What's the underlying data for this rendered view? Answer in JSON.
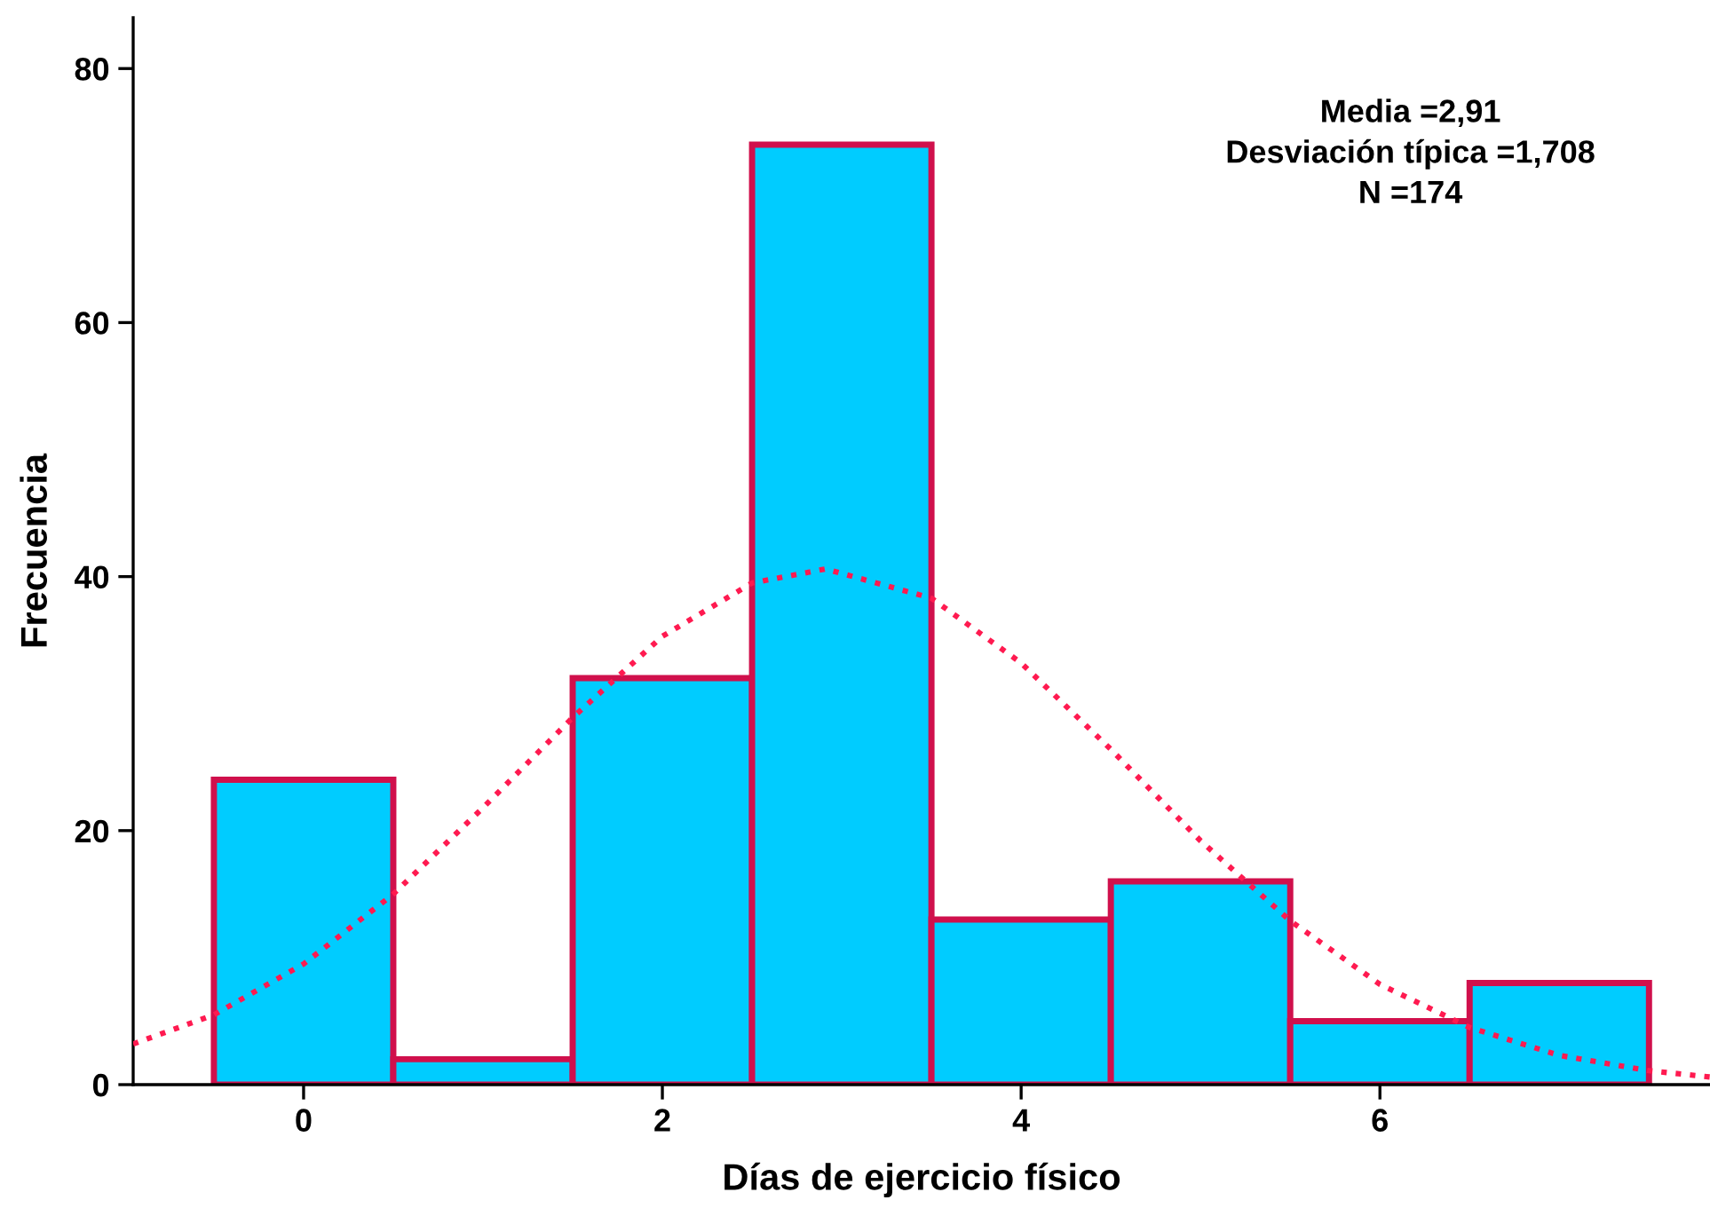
{
  "chart_data": {
    "type": "histogram",
    "xlabel": "Días de ejercicio físico",
    "ylabel": "Frecuencia",
    "bins": [
      -0.5,
      0.5,
      1.5,
      2.5,
      3.5,
      4.5,
      5.5,
      6.5,
      7.5
    ],
    "values": [
      24,
      2,
      32,
      74,
      13,
      16,
      5,
      8
    ],
    "color": "#00ccff",
    "series": [
      {
        "type": "line",
        "color": "#ff1a50",
        "line_style": "dotted",
        "x": [
          -0.95,
          -0.5,
          0,
          0.5,
          1,
          1.5,
          2,
          2.5,
          2.91,
          3.5,
          4,
          4.5,
          5,
          5.5,
          6,
          6.5,
          7,
          7.5,
          7.84
        ],
        "values": [
          3.2,
          5.5,
          9.5,
          15,
          21.8,
          28.9,
          35.3,
          39.5,
          40.6,
          38.3,
          33.2,
          26.4,
          19.2,
          12.9,
          7.9,
          4.5,
          2.3,
          1.1,
          0.6
        ]
      }
    ],
    "xlim": [
      -0.95,
      7.84
    ],
    "ylim": [
      0,
      84
    ],
    "xticks": [
      0,
      2,
      4,
      6
    ],
    "yticks": [
      0,
      20,
      40,
      60,
      80
    ],
    "grid": false,
    "annotations": [
      "Media =2,91",
      "Desviación típica =1,708",
      "N =174"
    ]
  }
}
